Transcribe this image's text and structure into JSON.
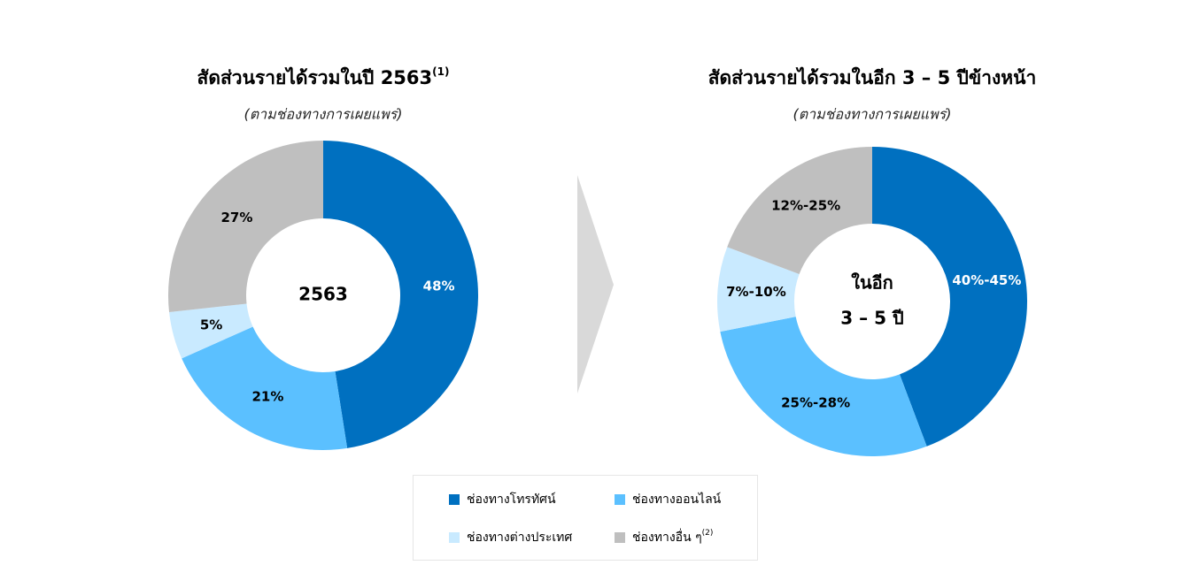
{
  "chart_data": [
    {
      "type": "pie",
      "title": "สัดส่วนรายได้รวมในปี 2563",
      "title_note": "(1)",
      "subtitle": "(ตามช่องทางการเผยแพร่)",
      "center_label": [
        "2563"
      ],
      "values": [
        48,
        21,
        5,
        27
      ],
      "value_labels": [
        "48%",
        "21%",
        "5%",
        "27%"
      ]
    },
    {
      "type": "pie",
      "title": "สัดส่วนรายได้รวมในอีก 3 – 5 ปีข้างหน้า",
      "subtitle": "(ตามช่องทางการเผยแพร่)",
      "center_label": [
        "ในอีก",
        "3 – 5 ปี"
      ],
      "values": [
        42.5,
        26.5,
        8.5,
        18.5
      ],
      "value_labels": [
        "40%-45%",
        "25%-28%",
        "7%-10%",
        "12%-25%"
      ]
    }
  ],
  "legend": {
    "items": [
      {
        "name": "ช่องทางโทรทัศน์",
        "color": "#0070c0",
        "label_color": "#ffffff"
      },
      {
        "name": "ช่องทางออนไลน์",
        "color": "#5bc0ff",
        "label_color": "#000000"
      },
      {
        "name": "ช่องทางต่างประเทศ",
        "color": "#c9eaff",
        "label_color": "#000000"
      },
      {
        "name": "ช่องทางอื่น ๆ",
        "note": "(2)",
        "color": "#bfbfbf",
        "label_color": "#000000"
      }
    ]
  }
}
